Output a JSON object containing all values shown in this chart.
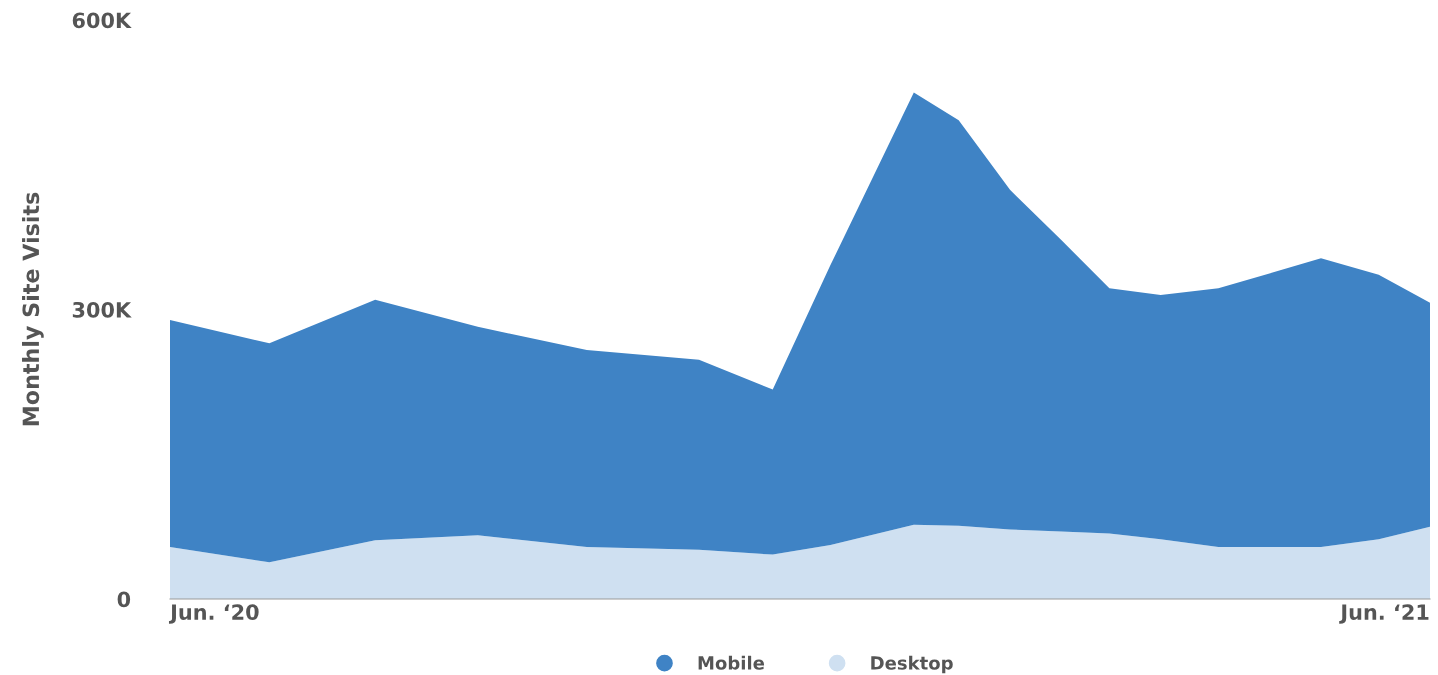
{
  "chart_data": {
    "type": "area",
    "ylabel": "Monthly Site Visits",
    "stacked": true,
    "legend": "bottom",
    "grid": false,
    "x": [
      "2020-05-18",
      "2020-06-18",
      "2020-07-21",
      "2020-08-22",
      "2020-09-25",
      "2020-10-30",
      "2020-11-22",
      "2020-12-10",
      "2021-01-05",
      "2021-01-19",
      "2021-02-04",
      "2021-02-20",
      "2021-03-07",
      "2021-03-23",
      "2021-04-10",
      "2021-05-12",
      "2021-05-30",
      "2021-06-15"
    ],
    "series": [
      {
        "name": "Desktop",
        "color": "#cfe0f1",
        "values": [
          54000,
          38000,
          61000,
          66000,
          54000,
          51000,
          46000,
          56000,
          77000,
          76000,
          72000,
          70000,
          68000,
          62000,
          54000,
          54000,
          62000,
          75000
        ]
      },
      {
        "name": "Mobile",
        "color": "#3f83c5",
        "values": [
          235000,
          227000,
          249000,
          216000,
          204000,
          197000,
          171000,
          290000,
          448000,
          420000,
          352000,
          302000,
          254000,
          253000,
          268000,
          299000,
          274000,
          232000
        ]
      }
    ],
    "xlim": [
      "2020-05-18",
      "2021-06-15"
    ],
    "xticks": [
      {
        "value": "2020-06-01",
        "label": "Jun. ‘20"
      },
      {
        "value": "2021-06-01",
        "label": "Jun. ‘21"
      }
    ],
    "ylim": [
      0,
      600000
    ],
    "yticks": [
      {
        "value": 0,
        "label": "0"
      },
      {
        "value": 300000,
        "label": "300K"
      },
      {
        "value": 600000,
        "label": "600K"
      }
    ]
  }
}
